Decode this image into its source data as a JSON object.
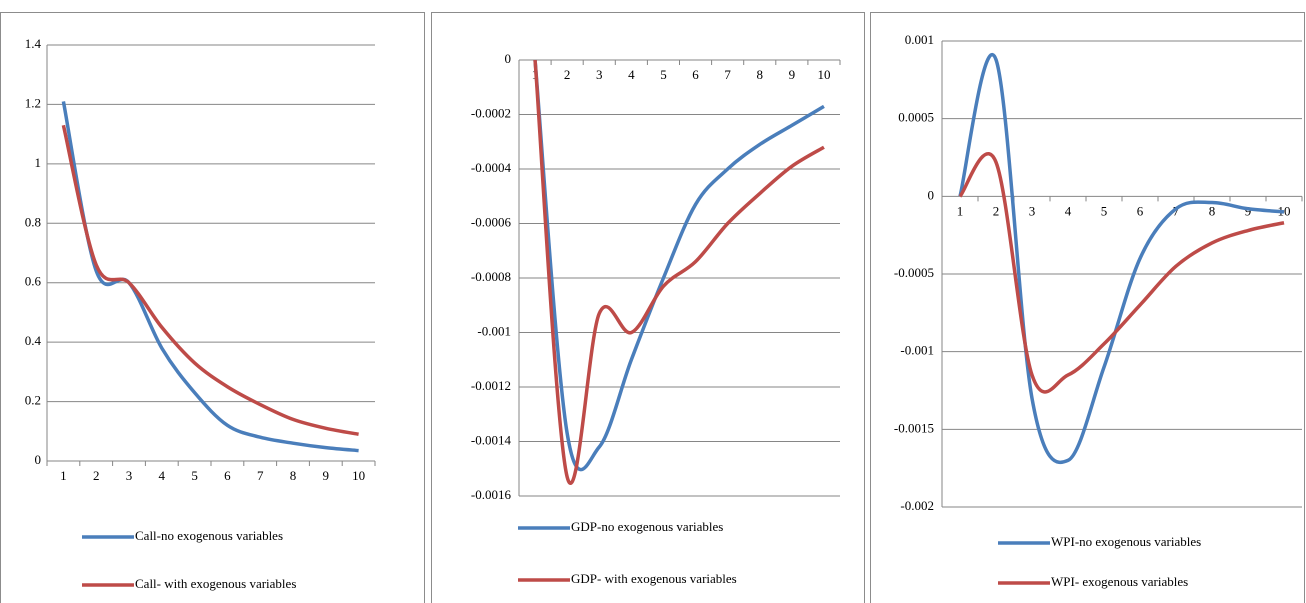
{
  "chart_data": [
    {
      "type": "line",
      "categories": [
        "1",
        "2",
        "3",
        "4",
        "5",
        "6",
        "7",
        "8",
        "9",
        "10"
      ],
      "ylim": [
        0,
        1.4
      ],
      "yticks": [
        0,
        0.2,
        0.4,
        0.6,
        0.8,
        1,
        1.2,
        1.4
      ],
      "grid": true,
      "series": [
        {
          "name": "Call-no exogenous variables",
          "color": "#4a7ebb",
          "values": [
            1.21,
            0.64,
            0.6,
            0.38,
            0.23,
            0.12,
            0.08,
            0.06,
            0.045,
            0.035
          ]
        },
        {
          "name": "Call- with exogenous variables",
          "color": "#be4b48",
          "values": [
            1.13,
            0.66,
            0.6,
            0.45,
            0.33,
            0.25,
            0.19,
            0.14,
            0.11,
            0.09
          ]
        }
      ]
    },
    {
      "type": "line",
      "categories": [
        "1",
        "2",
        "3",
        "4",
        "5",
        "6",
        "7",
        "8",
        "9",
        "10"
      ],
      "ylim": [
        -0.0016,
        0
      ],
      "yticks": [
        0,
        -0.0002,
        -0.0004,
        -0.0006,
        -0.0008,
        -0.001,
        -0.0012,
        -0.0014,
        -0.0016
      ],
      "grid": true,
      "series": [
        {
          "name": "GDP-no exogenous variables",
          "color": "#4a7ebb",
          "values": [
            0,
            -0.00137,
            -0.00142,
            -0.0011,
            -0.0008,
            -0.00053,
            -0.0004,
            -0.00031,
            -0.00024,
            -0.00017
          ]
        },
        {
          "name": "GDP- with exogenous variables",
          "color": "#be4b48",
          "values": [
            0,
            -0.00153,
            -0.00093,
            -0.001,
            -0.00083,
            -0.00074,
            -0.0006,
            -0.00049,
            -0.00039,
            -0.00032
          ]
        }
      ]
    },
    {
      "type": "line",
      "categories": [
        "1",
        "2",
        "3",
        "4",
        "5",
        "6",
        "7",
        "8",
        "9",
        "10"
      ],
      "ylim": [
        -0.002,
        0.001
      ],
      "yticks": [
        0.001,
        0.0005,
        0,
        -0.0005,
        -0.001,
        -0.0015,
        -0.002
      ],
      "grid": true,
      "series": [
        {
          "name": "WPI-no exogenous variables",
          "color": "#4a7ebb",
          "values": [
            0,
            0.00088,
            -0.0013,
            -0.0017,
            -0.0011,
            -0.0004,
            -8e-05,
            -4e-05,
            -8e-05,
            -0.0001
          ]
        },
        {
          "name": "WPI- exogenous variables",
          "color": "#be4b48",
          "values": [
            0,
            0.00022,
            -0.00115,
            -0.00115,
            -0.00095,
            -0.0007,
            -0.00045,
            -0.0003,
            -0.00022,
            -0.00017
          ]
        }
      ]
    }
  ]
}
